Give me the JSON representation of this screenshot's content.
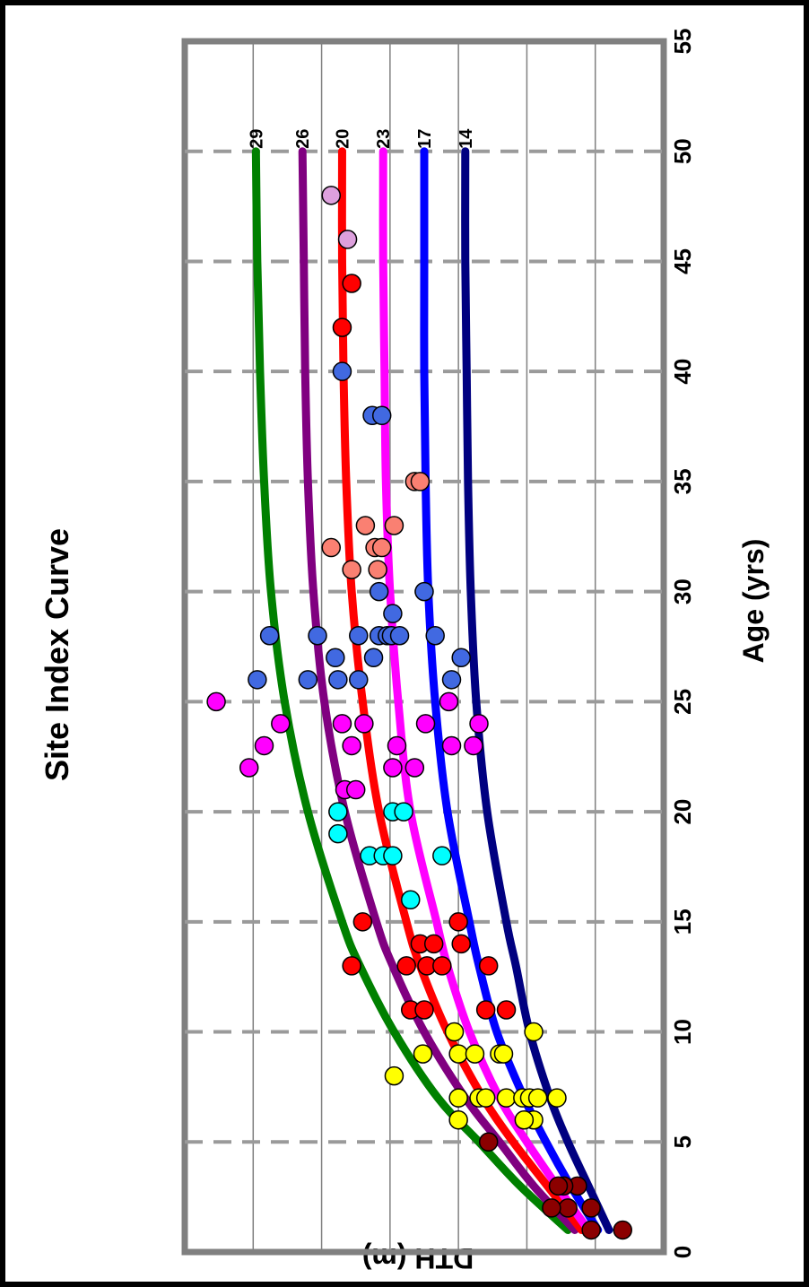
{
  "chart_data": {
    "type": "scatter",
    "title": "Site Index Curve",
    "xlabel": "Age (yrs)",
    "ylabel": "DTH (m)",
    "xlim": [
      0,
      55
    ],
    "ylim": [
      0,
      35
    ],
    "x_ticks": [
      "0",
      "5",
      "10",
      "15",
      "20",
      "25",
      "30",
      "35",
      "40",
      "45",
      "50",
      "55"
    ],
    "y_ticks": [
      "0",
      "5",
      "10",
      "15",
      "20",
      "25",
      "30",
      "35"
    ],
    "grid": {
      "vertical": "dashed gray every 5 yrs",
      "horizontal": "solid gray every 5 m"
    },
    "orientation": "rotated 90 degrees clockwise",
    "curves": [
      {
        "label": "29",
        "color": "#008000",
        "points": [
          [
            1,
            7.0
          ],
          [
            3,
            10.5
          ],
          [
            5,
            13.5
          ],
          [
            7,
            16.5
          ],
          [
            10,
            19.7
          ],
          [
            13,
            22.2
          ],
          [
            15,
            23.5
          ],
          [
            20,
            26.0
          ],
          [
            25,
            27.7
          ],
          [
            30,
            28.7
          ],
          [
            35,
            29.2
          ],
          [
            40,
            29.5
          ],
          [
            45,
            29.7
          ],
          [
            50,
            29.8
          ]
        ]
      },
      {
        "label": "26",
        "color": "#800080",
        "points": [
          [
            1,
            6.5
          ],
          [
            3,
            9.5
          ],
          [
            5,
            12.0
          ],
          [
            7,
            14.5
          ],
          [
            10,
            17.5
          ],
          [
            13,
            19.8
          ],
          [
            15,
            21.0
          ],
          [
            20,
            23.3
          ],
          [
            25,
            24.8
          ],
          [
            30,
            25.6
          ],
          [
            35,
            26.0
          ],
          [
            40,
            26.2
          ],
          [
            45,
            26.3
          ],
          [
            50,
            26.4
          ]
        ]
      },
      {
        "label": "20",
        "color": "#ff0000",
        "points": [
          [
            1,
            6.0
          ],
          [
            3,
            8.5
          ],
          [
            5,
            11.0
          ],
          [
            7,
            13.2
          ],
          [
            10,
            15.8
          ],
          [
            13,
            17.8
          ],
          [
            15,
            18.8
          ],
          [
            20,
            20.8
          ],
          [
            25,
            22.0
          ],
          [
            30,
            22.8
          ],
          [
            35,
            23.2
          ],
          [
            40,
            23.4
          ],
          [
            45,
            23.5
          ],
          [
            50,
            23.5
          ]
        ]
      },
      {
        "label": "23",
        "color": "#ff00ff",
        "points": [
          [
            1,
            5.5
          ],
          [
            3,
            7.8
          ],
          [
            5,
            10.0
          ],
          [
            7,
            12.0
          ],
          [
            10,
            14.2
          ],
          [
            13,
            15.8
          ],
          [
            15,
            16.6
          ],
          [
            20,
            18.5
          ],
          [
            25,
            19.4
          ],
          [
            30,
            20.0
          ],
          [
            35,
            20.3
          ],
          [
            40,
            20.4
          ],
          [
            45,
            20.5
          ],
          [
            50,
            20.5
          ]
        ]
      },
      {
        "label": "17",
        "color": "#0000ff",
        "points": [
          [
            1,
            4.8
          ],
          [
            3,
            6.8
          ],
          [
            5,
            8.6
          ],
          [
            7,
            10.2
          ],
          [
            10,
            12.2
          ],
          [
            13,
            13.5
          ],
          [
            15,
            14.2
          ],
          [
            20,
            15.8
          ],
          [
            25,
            16.7
          ],
          [
            30,
            17.2
          ],
          [
            35,
            17.4
          ],
          [
            40,
            17.5
          ],
          [
            45,
            17.5
          ],
          [
            50,
            17.5
          ]
        ]
      },
      {
        "label": "14",
        "color": "#000080",
        "points": [
          [
            1,
            4.0
          ],
          [
            3,
            5.5
          ],
          [
            5,
            7.0
          ],
          [
            7,
            8.3
          ],
          [
            10,
            9.8
          ],
          [
            13,
            10.8
          ],
          [
            15,
            11.5
          ],
          [
            20,
            12.9
          ],
          [
            25,
            13.7
          ],
          [
            30,
            14.1
          ],
          [
            35,
            14.3
          ],
          [
            40,
            14.4
          ],
          [
            45,
            14.5
          ],
          [
            50,
            14.5
          ]
        ]
      }
    ],
    "series": [
      {
        "color": "#8b0000",
        "points": [
          [
            1,
            3
          ],
          [
            1,
            5.3
          ],
          [
            2,
            5.3
          ],
          [
            2,
            7
          ],
          [
            2,
            8.2
          ],
          [
            3,
            6.3
          ],
          [
            3,
            7.3
          ],
          [
            3,
            7.7
          ],
          [
            5,
            12.8
          ]
        ]
      },
      {
        "color": "#ffff00",
        "points": [
          [
            6,
            15
          ],
          [
            6,
            9.5
          ],
          [
            6,
            10.2
          ],
          [
            7,
            15
          ],
          [
            7,
            13.5
          ],
          [
            7,
            13
          ],
          [
            7,
            11.5
          ],
          [
            7,
            10.3
          ],
          [
            7,
            9.8
          ],
          [
            7,
            9.2
          ],
          [
            7,
            7.8
          ],
          [
            8,
            19.7
          ],
          [
            9,
            17.6
          ],
          [
            9,
            15
          ],
          [
            9,
            13.8
          ],
          [
            9,
            12
          ],
          [
            9,
            11.7
          ],
          [
            10,
            15.3
          ],
          [
            10,
            9.5
          ]
        ]
      },
      {
        "color": "#ff0000",
        "points": [
          [
            11,
            18.5
          ],
          [
            11,
            17.5
          ],
          [
            11,
            13
          ],
          [
            11,
            11.5
          ],
          [
            13,
            22.8
          ],
          [
            13,
            18.8
          ],
          [
            13,
            17.3
          ],
          [
            13,
            16.2
          ],
          [
            13,
            12.8
          ],
          [
            14,
            17.8
          ],
          [
            14,
            16.8
          ],
          [
            14,
            14.8
          ],
          [
            15,
            22
          ],
          [
            15,
            15
          ]
        ]
      },
      {
        "color": "#00ffff",
        "points": [
          [
            16,
            18.5
          ],
          [
            18,
            21.5
          ],
          [
            18,
            20.5
          ],
          [
            18,
            19.8
          ],
          [
            18,
            16.2
          ],
          [
            19,
            23.8
          ],
          [
            20,
            23.8
          ],
          [
            20,
            19.8
          ],
          [
            20,
            19
          ]
        ]
      },
      {
        "color": "#ff00ff",
        "points": [
          [
            21,
            23.3
          ],
          [
            21,
            22.5
          ],
          [
            22,
            30.3
          ],
          [
            22,
            19.8
          ],
          [
            22,
            18.2
          ],
          [
            23,
            29.2
          ],
          [
            23,
            22.8
          ],
          [
            23,
            19.5
          ],
          [
            23,
            15.5
          ],
          [
            23,
            13.9
          ],
          [
            24,
            28
          ],
          [
            24,
            23.5
          ],
          [
            24,
            21.9
          ],
          [
            24,
            17.4
          ],
          [
            24,
            13.5
          ],
          [
            25,
            32.7
          ],
          [
            25,
            15.7
          ]
        ]
      },
      {
        "color": "#4169e1",
        "points": [
          [
            26,
            29.7
          ],
          [
            26,
            26
          ],
          [
            26,
            23.8
          ],
          [
            26,
            22.3
          ],
          [
            26,
            15.5
          ],
          [
            27,
            24
          ],
          [
            27,
            21.2
          ],
          [
            27,
            14.8
          ],
          [
            28,
            28.8
          ],
          [
            28,
            25.3
          ],
          [
            28,
            22.3
          ],
          [
            28,
            20.8
          ],
          [
            28,
            20.2
          ],
          [
            28,
            19.9
          ],
          [
            28,
            19.3
          ],
          [
            28,
            16.7
          ],
          [
            29,
            19.8
          ],
          [
            30,
            20.8
          ],
          [
            30,
            17.5
          ],
          [
            38,
            21.3
          ],
          [
            38,
            20.6
          ],
          [
            40,
            23.5
          ]
        ]
      },
      {
        "color": "#fa8072",
        "points": [
          [
            31,
            22.8
          ],
          [
            31,
            20.9
          ],
          [
            32,
            24.3
          ],
          [
            32,
            21.1
          ],
          [
            32,
            20.6
          ],
          [
            33,
            21.8
          ],
          [
            33,
            19.7
          ],
          [
            35,
            18.2
          ],
          [
            35,
            17.8
          ]
        ]
      },
      {
        "color": "#ff0000",
        "points": [
          [
            42,
            23.5
          ],
          [
            44,
            22.8
          ]
        ]
      },
      {
        "color": "#dda0dd",
        "points": [
          [
            46,
            23.1
          ],
          [
            48,
            24.3
          ]
        ]
      }
    ]
  }
}
